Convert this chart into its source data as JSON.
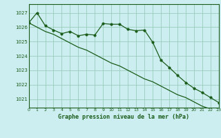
{
  "title": "Graphe pression niveau de la mer (hPa)",
  "bg_color": "#cceef0",
  "grid_color": "#99ccbb",
  "line_color": "#1a5c1a",
  "xlim": [
    0,
    23
  ],
  "ylim": [
    1020.4,
    1027.6
  ],
  "yticks": [
    1021,
    1022,
    1023,
    1024,
    1025,
    1026,
    1027
  ],
  "xticks": [
    0,
    1,
    2,
    3,
    4,
    5,
    6,
    7,
    8,
    9,
    10,
    11,
    12,
    13,
    14,
    15,
    16,
    17,
    18,
    19,
    20,
    21,
    22,
    23
  ],
  "smooth_x": [
    0,
    1,
    2,
    3,
    4,
    5,
    6,
    7,
    8,
    9,
    10,
    11,
    12,
    13,
    14,
    15,
    16,
    17,
    18,
    19,
    20,
    21,
    22,
    23
  ],
  "smooth_y": [
    1026.3,
    1026.0,
    1025.7,
    1025.5,
    1025.2,
    1024.9,
    1024.6,
    1024.4,
    1024.1,
    1023.8,
    1023.5,
    1023.3,
    1023.0,
    1022.7,
    1022.4,
    1022.2,
    1021.9,
    1021.6,
    1021.3,
    1021.1,
    1020.8,
    1020.5,
    1020.3,
    1020.0
  ],
  "marker_x": [
    0,
    1,
    2,
    3,
    4,
    5,
    6,
    7,
    8,
    9,
    10,
    11,
    12,
    13,
    14,
    15,
    16,
    17,
    18,
    19,
    20,
    21,
    22,
    23
  ],
  "marker_y": [
    1026.3,
    1027.0,
    1026.1,
    1025.8,
    1025.55,
    1025.7,
    1025.4,
    1025.5,
    1025.45,
    1026.25,
    1026.2,
    1026.2,
    1025.85,
    1025.75,
    1025.8,
    1024.95,
    1023.7,
    1023.2,
    1022.65,
    1022.15,
    1021.75,
    1021.45,
    1021.1,
    1020.75
  ]
}
